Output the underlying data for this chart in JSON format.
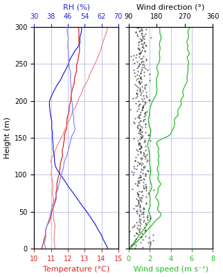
{
  "temp_xlim": [
    10,
    15
  ],
  "temp_xticks": [
    10,
    11,
    12,
    13,
    14,
    15
  ],
  "rh_xlim": [
    30,
    70
  ],
  "rh_xticks": [
    30,
    38,
    46,
    54,
    62,
    70
  ],
  "wind_dir_xlim": [
    90,
    360
  ],
  "wind_dir_xticks": [
    90,
    180,
    270,
    360
  ],
  "wind_spd_xlim": [
    0,
    8
  ],
  "wind_spd_xticks": [
    0,
    2,
    4,
    6,
    8
  ],
  "ylim": [
    0,
    300
  ],
  "yticks": [
    0,
    50,
    100,
    150,
    200,
    250,
    300
  ],
  "ylabel": "Height (m)",
  "temp_xlabel": "Temperature (°C)",
  "rh_label": "RH (%)",
  "wind_dir_title": "Wind direction (°)",
  "wind_spd_xlabel": "Wind speed (m s⁻¹)",
  "temp_color": "#dd2222",
  "temp2_color": "#ee8888",
  "rh_color": "#2222dd",
  "rh2_color": "#8888ee",
  "wind_dir_color": "#111111",
  "wind_spd_color": "#22bb22",
  "grid_color": "#aaaadd",
  "background_color": "#ffffff",
  "label_fontsize": 8,
  "tick_fontsize": 7
}
